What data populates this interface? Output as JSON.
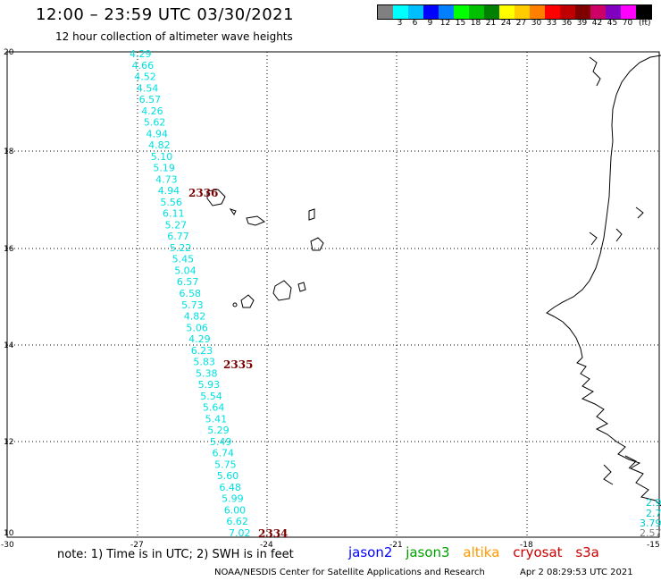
{
  "title": "12:00 – 23:59 UTC 03/30/2021",
  "subtitle": "12 hour collection of altimeter wave heights",
  "legend": {
    "colors": [
      "#808080",
      "#00ffff",
      "#00bfff",
      "#0000ff",
      "#0080ff",
      "#00ff00",
      "#00c000",
      "#008000",
      "#ffff00",
      "#ffcc00",
      "#ff8000",
      "#ff0000",
      "#c00000",
      "#800000",
      "#cc0066",
      "#8000c0",
      "#ff00ff",
      "#000000"
    ],
    "labels": [
      "",
      "3",
      "6",
      "9",
      "12",
      "15",
      "18",
      "21",
      "24",
      "27",
      "30",
      "33",
      "36",
      "39",
      "42",
      "45",
      "70",
      ""
    ],
    "unit": "(ft)"
  },
  "axes": {
    "lon_ticks": [
      "-30",
      "-27",
      "-24",
      "-21",
      "-18",
      "-15"
    ],
    "lat_ticks": [
      "20",
      "18",
      "16",
      "14",
      "12",
      "10"
    ]
  },
  "track": {
    "color": "#00e0e0",
    "values": [
      "4.29",
      "4.66",
      "4.52",
      "4.54",
      "6.57",
      "4.26",
      "5.62",
      "4.94",
      "4.82",
      "5.10",
      "5.19",
      "4.73",
      "4.94",
      "5.56",
      "6.11",
      "5.27",
      "6.77",
      "5.22",
      "5.45",
      "5.04",
      "6.57",
      "6.58",
      "5.73",
      "4.82",
      "5.06",
      "4.29",
      "6.23",
      "5.83",
      "5.38",
      "5.93",
      "5.54",
      "5.64",
      "5.41",
      "5.29",
      "5.49",
      "6.74",
      "5.75",
      "5.60",
      "6.48",
      "5.99",
      "6.00",
      "6.62",
      "7.02"
    ]
  },
  "pass_labels": [
    {
      "text": "2336"
    },
    {
      "text": "2335"
    },
    {
      "text": "2334"
    }
  ],
  "edge_values": [
    "2.9",
    "2.7",
    "3.79",
    "2.57"
  ],
  "note": "note: 1) Time is in UTC; 2) SWH is in feet",
  "satellites": [
    {
      "name": "jason2",
      "color": "#0000ff"
    },
    {
      "name": "jason3",
      "color": "#00a000"
    },
    {
      "name": "altika",
      "color": "#ff9900"
    },
    {
      "name": "cryosat",
      "color": "#cc0000"
    },
    {
      "name": "s3a",
      "color": "#cc0000"
    }
  ],
  "credit": "NOAA/NESDIS Center for Satellite Applications and Research",
  "credit_date": "Apr  2 08:29:53 UTC 2021"
}
